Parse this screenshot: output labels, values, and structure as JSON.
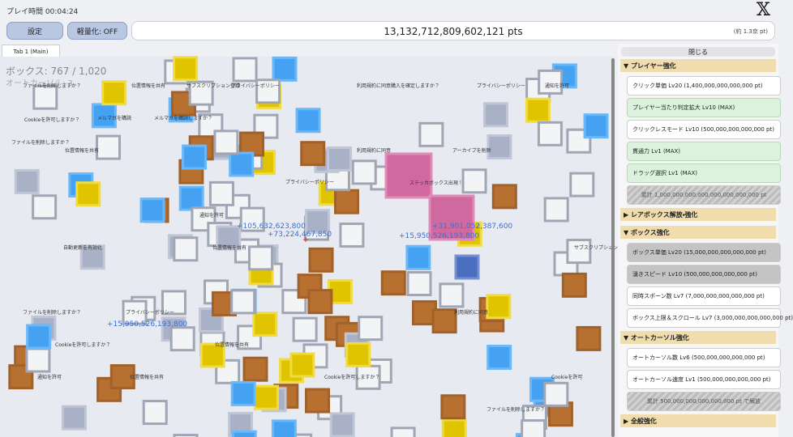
{
  "header": {
    "play_time": "プレイ時間 00:04:24",
    "settings": "設定",
    "light_mode": "軽量化: OFF",
    "score": "13,132,712,809,602,121 pts",
    "approx": "(約 1.3京 pt)",
    "x_icon": "𝕏"
  },
  "tabs": [
    "Tab 1 (Main)"
  ],
  "game": {
    "box_count": "ボックス: 767 / 1,020",
    "auto_cursor": "オートカーソル: 3",
    "floating_gains": [
      "+105,632,623,800",
      "+73,224,467,850",
      "+15,950,526,193,800",
      "+31,901,052,387,600",
      "+15,950,526,193,800"
    ],
    "box_labels": [
      "ファイルを削除しますか？",
      "位置情報を共有",
      "サブスクリプション登録",
      "プライバシーポリシー",
      "利用規約に同意",
      "購入を確定しますか？",
      "Cookieを許可しますか？",
      "メルマガを購読",
      "位置情報を共有",
      "アーカイブを削除",
      "ファイルを削除しますか？",
      "プライバシーポリシー",
      "通知を許可",
      "メルマガを購読しますか？",
      "利用規約に同意",
      "自動更新を有効化",
      "プライバシーポリシー",
      "通知を許可",
      "位置情報を共有",
      "サブスクリプション",
      "プライバシーポリシー",
      "ファイルを削除しますか？",
      "利用規約に同意",
      "Cookieを許可しますか？",
      "通知を許可",
      "位置情報を共有",
      "Cookieを許可しますか？",
      "位置情報を共有",
      "Cookieを許可",
      "ファイルを削除しますか？",
      "ステッカボックス出現！"
    ]
  },
  "panel": {
    "close": "閉じる",
    "sections": [
      {
        "title": "▼ プレイヤー強化",
        "items": [
          {
            "label": "クリック単価 Lv20 (1,400,000,000,000,000 pt)",
            "state": "available"
          },
          {
            "label": "プレイヤー当たり判定拡大 Lv10 (MAX)",
            "state": "max"
          },
          {
            "label": "クリックレスモード Lv10 (500,000,000,000,000 pt)",
            "state": "available"
          },
          {
            "label": "貫通力 Lv1 (MAX)",
            "state": "max"
          },
          {
            "label": "ドラッグ選択 Lv1 (MAX)",
            "state": "max"
          },
          {
            "label": "累計 1,000,000,000,000,000,000,000,000 pt",
            "state": "locked"
          }
        ]
      },
      {
        "title": "▶ レアボックス解放・強化",
        "items": []
      },
      {
        "title": "▼ ボックス強化",
        "items": [
          {
            "label": "ボックス単価 Lv20 (15,000,000,000,000,000 pt)",
            "state": "unaffordable"
          },
          {
            "label": "湧きスピード Lv10 (500,000,000,000,000 pt)",
            "state": "unaffordable"
          },
          {
            "label": "同時スポーン数 Lv7 (7,000,000,000,000,000 pt)",
            "state": "available"
          },
          {
            "label": "ボックス上限＆スクロール Lv7 (3,000,000,000,000,000 pt)",
            "state": "available"
          }
        ]
      },
      {
        "title": "▼ オートカーソル強化",
        "items": [
          {
            "label": "オートカーソル数 Lv6 (500,000,000,000,000 pt)",
            "state": "available"
          },
          {
            "label": "オートカーソル速度 Lv1 (500,000,000,000,000 pt)",
            "state": "available"
          },
          {
            "label": "累計 500,000,000,000,000,000 pt で解放",
            "state": "locked"
          }
        ]
      },
      {
        "title": "▶ 全般強化",
        "items": []
      }
    ]
  }
}
